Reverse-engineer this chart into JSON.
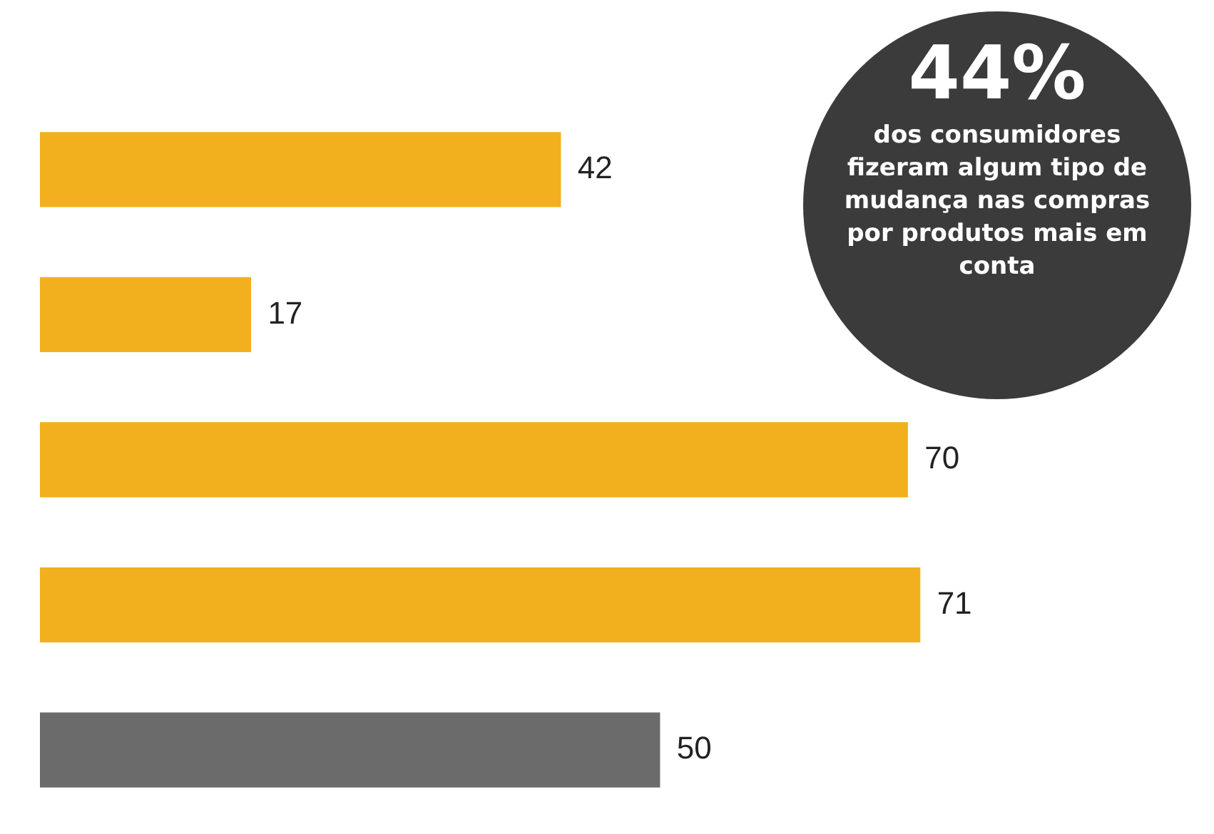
{
  "chart_data": {
    "type": "bar",
    "orientation": "horizontal",
    "categories": [
      null,
      null,
      null,
      null,
      null
    ],
    "values": [
      42,
      17,
      70,
      71,
      50
    ],
    "colors": [
      "#f2b01e",
      "#f2b01e",
      "#f2b01e",
      "#f2b01e",
      "#6b6b6b"
    ],
    "data_labels": true,
    "tick_labels": false,
    "annotations": [
      "44%",
      "dos consumidores fizeram algum tipo de mudança nas compras por produtos mais em conta"
    ]
  }
}
